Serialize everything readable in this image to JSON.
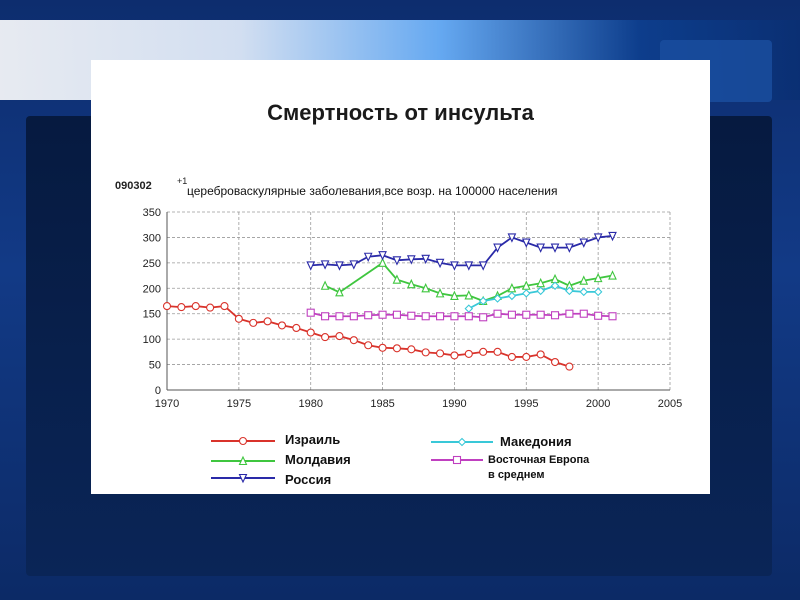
{
  "slide": {
    "title": "Смертность от инсульта"
  },
  "chart_data": {
    "type": "line",
    "code": "090302",
    "code_suffix": "+1",
    "subtitle": "цереброваскулярные заболевания,все возр. на 100000 населения",
    "xlim": [
      1970,
      2005
    ],
    "ylim": [
      0,
      350
    ],
    "x_ticks": [
      1970,
      1975,
      1980,
      1985,
      1990,
      1995,
      2000,
      2005
    ],
    "y_ticks": [
      0,
      50,
      100,
      150,
      200,
      250,
      300,
      350
    ],
    "grid": true,
    "legend_position": "bottom",
    "series": [
      {
        "name": "Израиль",
        "color": "#d9332b",
        "marker": "circle",
        "x": [
          1970,
          1971,
          1972,
          1973,
          1974,
          1975,
          1976,
          1977,
          1978,
          1979,
          1980,
          1981,
          1982,
          1983,
          1984,
          1985,
          1986,
          1987,
          1988,
          1989,
          1990,
          1991,
          1992,
          1993,
          1994,
          1995,
          1996,
          1997,
          1998
        ],
        "y": [
          165,
          163,
          165,
          162,
          165,
          140,
          132,
          135,
          127,
          122,
          113,
          104,
          106,
          98,
          88,
          83,
          82,
          80,
          74,
          72,
          68,
          71,
          75,
          75,
          65,
          65,
          70,
          55,
          46
        ]
      },
      {
        "name": "Молдавия",
        "color": "#3fc63f",
        "marker": "triangle",
        "x": [
          1981,
          1982,
          1985,
          1986,
          1987,
          1988,
          1989,
          1990,
          1991,
          1992,
          1993,
          1994,
          1995,
          1996,
          1997,
          1998,
          1999,
          2000,
          2001
        ],
        "y": [
          205,
          192,
          250,
          217,
          208,
          200,
          190,
          185,
          186,
          175,
          185,
          200,
          205,
          210,
          218,
          205,
          215,
          220,
          225
        ]
      },
      {
        "name": "Россия",
        "color": "#2a2aa8",
        "marker": "triangle-down",
        "x": [
          1980,
          1981,
          1982,
          1983,
          1984,
          1985,
          1986,
          1987,
          1988,
          1989,
          1990,
          1991,
          1992,
          1993,
          1994,
          1995,
          1996,
          1997,
          1998,
          1999,
          2000,
          2001
        ],
        "y": [
          245,
          247,
          245,
          247,
          262,
          265,
          255,
          257,
          258,
          250,
          245,
          245,
          245,
          280,
          300,
          290,
          280,
          280,
          280,
          290,
          300,
          303
        ]
      },
      {
        "name": "Македония",
        "color": "#39c8d8",
        "marker": "diamond",
        "x": [
          1991,
          1992,
          1993,
          1994,
          1995,
          1996,
          1997,
          1998,
          1999,
          2000
        ],
        "y": [
          160,
          175,
          180,
          185,
          190,
          195,
          205,
          195,
          193,
          193
        ]
      },
      {
        "name": "Восточная Европа в среднем",
        "name_line1": "Восточная Европа",
        "name_line2": "в среднем",
        "color": "#c040c0",
        "marker": "square",
        "x": [
          1980,
          1981,
          1982,
          1983,
          1984,
          1985,
          1986,
          1987,
          1988,
          1989,
          1990,
          1991,
          1992,
          1993,
          1994,
          1995,
          1996,
          1997,
          1998,
          1999,
          2000,
          2001
        ],
        "y": [
          152,
          145,
          145,
          145,
          147,
          148,
          148,
          146,
          145,
          145,
          145,
          145,
          143,
          150,
          148,
          148,
          148,
          147,
          150,
          150,
          146,
          145
        ]
      }
    ]
  }
}
